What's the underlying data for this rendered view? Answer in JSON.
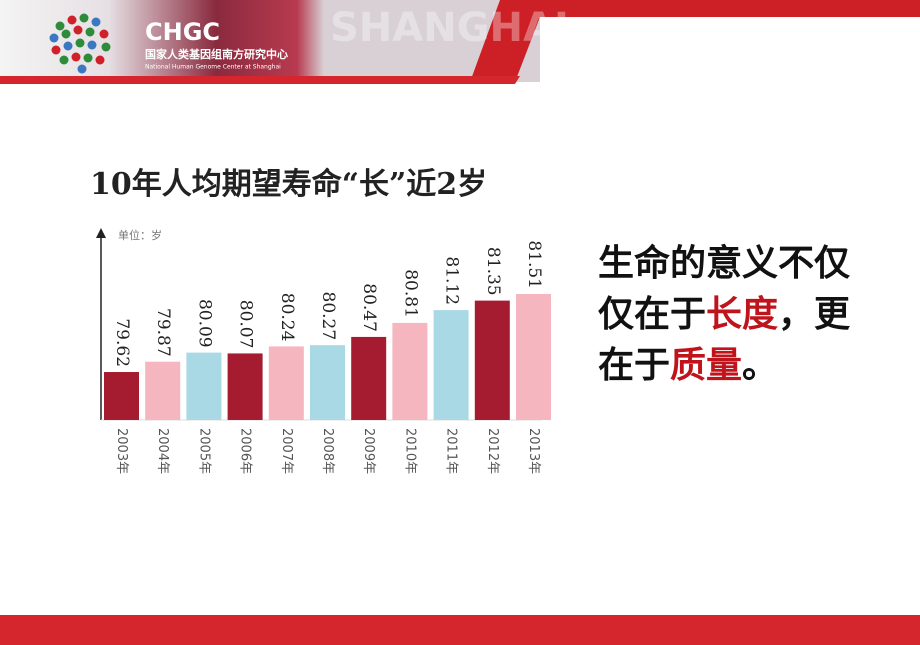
{
  "header": {
    "logo": "CHGC",
    "org_cn": "国家人类基因组南方研究中心",
    "org_en": "National Human Genome Center at Shanghai",
    "backdrop": "SHANGHAI"
  },
  "chart_data": {
    "type": "bar",
    "title": "10年人均期望寿命“长”近2岁",
    "unit": "单位：岁",
    "categories": [
      "2003年",
      "2004年",
      "2005年",
      "2006年",
      "2007年",
      "2008年",
      "2009年",
      "2010年",
      "2011年",
      "2012年",
      "2013年"
    ],
    "values": [
      79.62,
      79.87,
      80.09,
      80.07,
      80.24,
      80.27,
      80.47,
      80.81,
      81.12,
      81.35,
      81.51
    ],
    "colors": [
      "#a51c30",
      "#f5b6bf",
      "#a9d9e5",
      "#a51c30",
      "#f5b6bf",
      "#a9d9e5",
      "#a51c30",
      "#f5b6bf",
      "#a9d9e5",
      "#a51c30",
      "#f5b6bf"
    ]
  },
  "message": [
    {
      "text": "生命的意义不仅仅在于"
    },
    {
      "text": "长度",
      "highlight": true
    },
    {
      "text": "，更在于"
    },
    {
      "text": "质量",
      "highlight": true
    },
    {
      "text": "。"
    }
  ]
}
